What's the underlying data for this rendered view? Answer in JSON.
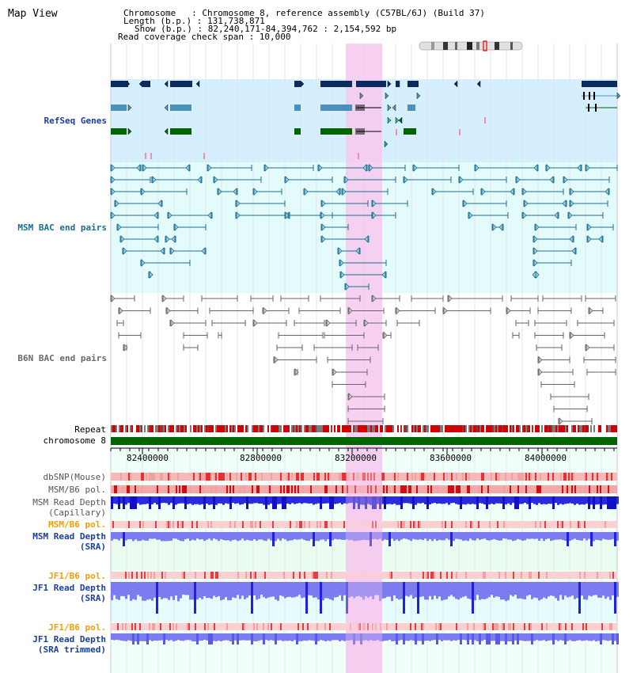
{
  "header": {
    "title": "Map View",
    "info": {
      "chromosome": "Chromosome   : Chromosome 8, reference assembly (C57BL/6J) (Build 37)",
      "length": "Length (b.p.) : 131,738,871",
      "show": "Show (b.p.) : 82,240,171-84,394,762 : 2,154,592 bp",
      "read_coverage": "Read coverage check span : 10,000"
    }
  },
  "tracks": {
    "refseq": {
      "label": "RefSeq Genes",
      "color": "#1a3fa0"
    },
    "msm_bac": {
      "label": "MSM BAC end pairs",
      "color": "#1a6f8f"
    },
    "b6n_bac": {
      "label": "B6N BAC end pairs",
      "color": "#6a6a6a"
    },
    "repeat": {
      "label": "Repeat"
    },
    "chromosome": {
      "label": "chromosome 8"
    },
    "dbsnp": {
      "label": "dbSNP(Mouse)"
    },
    "msm_b6_pol": {
      "label": "MSM/B6 pol."
    },
    "msm_read_cap": {
      "label": "MSM Read Depth\n(Capillary)"
    },
    "msm_b6_pol_sra": {
      "label": "MSM/B6 pol.",
      "color": "#f0a000"
    },
    "msm_read_sra": {
      "label": "MSM Read Depth\n(SRA)",
      "color": "#1a3fa0"
    },
    "jf1_b6_pol": {
      "label": "JF1/B6 pol.",
      "color": "#f0a000"
    },
    "jf1_read_sra": {
      "label": "JF1 Read Depth\n(SRA)",
      "color": "#1a3fa0"
    },
    "jf1_b6_pol2": {
      "label": "JF1/B6 pol.",
      "color": "#f0a000"
    },
    "jf1_read_trim": {
      "label": "JF1 Read Depth\n(SRA trimmed)",
      "color": "#1a3fa0"
    }
  },
  "axis": {
    "ticks": [
      "82400000",
      "82800000",
      "83200000",
      "83600000",
      "84000000"
    ]
  },
  "colors": {
    "highlight": "#f7c8ef",
    "refseq_bg": "#d6efff",
    "bac_bg": "#e4fbfb",
    "chrom_bar": "#006400",
    "read_depth_dark": "#2020e0",
    "read_depth_light": "#7c7cf0"
  }
}
